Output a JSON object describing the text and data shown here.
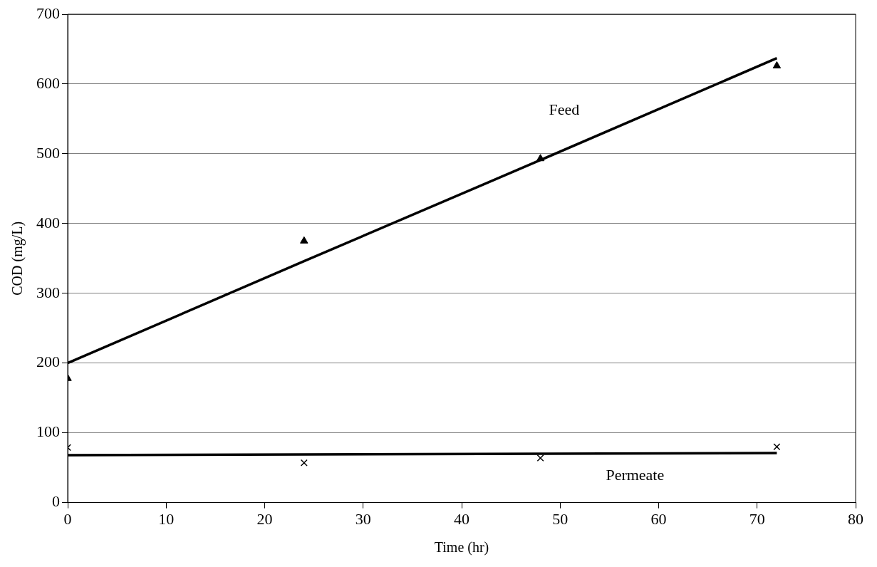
{
  "chart_data": {
    "type": "scatter",
    "xlabel": "Time (hr)",
    "ylabel": "COD (mg/L)",
    "x": [
      0,
      24,
      48,
      72
    ],
    "series": [
      {
        "color": "#000000",
        "marker": "triangle",
        "values": [
          178,
          375,
          493,
          626
        ]
      },
      {
        "color": "#000000",
        "marker": "cross",
        "values": [
          79,
          57,
          64,
          80
        ]
      },
      {
        "type": "line",
        "name": "Feed",
        "color": "#000000",
        "values": [
          200,
          346,
          491,
          637
        ]
      },
      {
        "type": "line",
        "name": "Permeate",
        "color": "#000000",
        "values": [
          68,
          69,
          70,
          71
        ]
      }
    ],
    "xlim": [
      0,
      80
    ],
    "xticks": [
      0,
      10,
      20,
      30,
      40,
      50,
      60,
      70,
      80
    ],
    "ylim": [
      0,
      700
    ],
    "yticks": [
      0,
      100,
      200,
      300,
      400,
      500,
      600,
      700
    ],
    "grid": "y",
    "legend": false
  }
}
